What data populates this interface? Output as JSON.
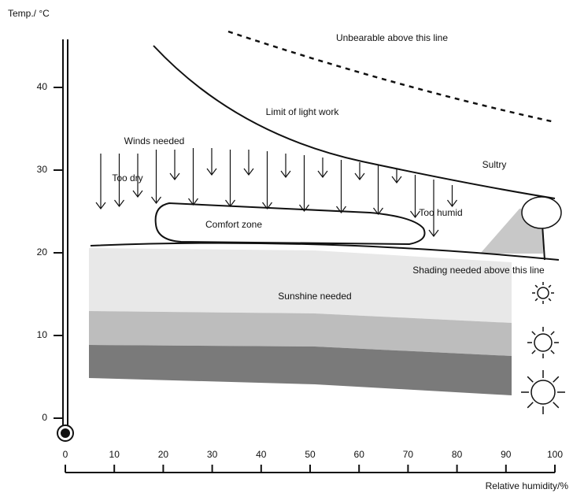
{
  "axes": {
    "x": {
      "label": "Relative humidity/%",
      "lim": [
        0,
        100
      ],
      "ticks": [
        0,
        10,
        20,
        30,
        40,
        50,
        60,
        70,
        80,
        90,
        100
      ]
    },
    "y": {
      "label": "Temp./ °C",
      "lim": [
        0,
        40
      ],
      "ticks": [
        0,
        10,
        20,
        30,
        40
      ]
    }
  },
  "labels": {
    "unbearable": "Unbearable above this line",
    "light_work": "Limit of light work",
    "winds": "Winds needed",
    "too_dry": "Too dry",
    "sultry": "Sultry",
    "comfort": "Comfort zone",
    "too_humid": "Too humid",
    "shading": "Shading needed above this line",
    "sunshine": "Sunshine needed"
  }
}
